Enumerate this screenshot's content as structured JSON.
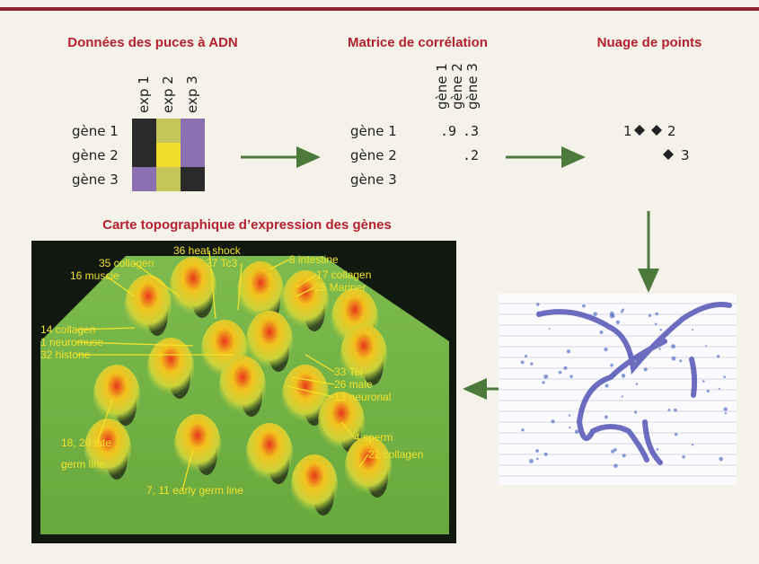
{
  "panels": {
    "microarray": {
      "title": "Données des puces à ADN",
      "columns": [
        "exp 1",
        "exp 2",
        "exp 3"
      ],
      "rows": [
        "gène 1",
        "gène 2",
        "gène 3"
      ]
    },
    "correlation": {
      "title": "Matrice de corrélation",
      "columns": [
        "gène 1",
        "gène 2",
        "gène 3"
      ],
      "rows": [
        "gène 1",
        "gène 2",
        "gène 3"
      ],
      "cells": [
        [
          ".9",
          ".3"
        ],
        [
          ".2"
        ]
      ]
    },
    "scatter": {
      "title": "Nuage de points",
      "labels": [
        "1",
        "2",
        "3"
      ]
    },
    "map": {
      "title": "Carte topographique d’expression des gènes",
      "labels": [
        [
          "36 heat shock"
        ],
        [
          "37 Tc3"
        ],
        [
          "35 collagen"
        ],
        [
          "8 intestine"
        ],
        [
          "16 muscle"
        ],
        [
          "17 collagen"
        ],
        [
          "25 Mariner"
        ],
        [
          "14 collagen"
        ],
        [
          "1 neuromuse"
        ],
        [
          "32 histone"
        ],
        [
          "33 Tel"
        ],
        [
          "26 male"
        ],
        [
          "13 neuronal"
        ],
        [
          "4 sperm"
        ],
        [
          "18, 20 late",
          "germ line"
        ],
        [
          "22 collagen"
        ],
        [
          "7, 11 early germ line"
        ]
      ]
    }
  }
}
